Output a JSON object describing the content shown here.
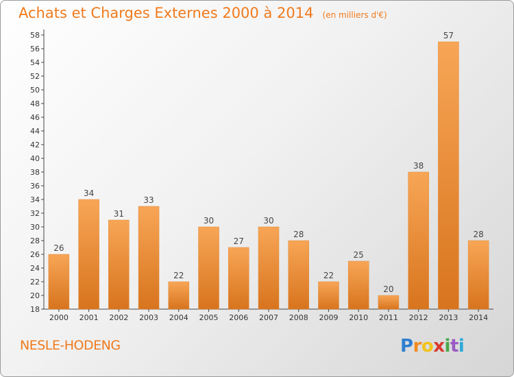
{
  "header": {
    "title": "Achats et Charges Externes 2000 à 2014",
    "unit": "(en milliers d'€)"
  },
  "footer": {
    "commune": "NESLE-HODENG",
    "logo": {
      "letters": [
        "P",
        "r",
        "o",
        "x",
        "i",
        "t",
        "i"
      ],
      "colors": [
        "#2f7fd0",
        "#f28a1c",
        "#f2c21c",
        "#d93a2c",
        "#4aa84a",
        "#9a5bc4",
        "#2fa8d8"
      ]
    }
  },
  "colors": {
    "bar_light": "#f7a656",
    "bar_dark": "#d8741e",
    "title": "#f07a1c"
  },
  "chart_data": {
    "type": "bar",
    "title": "Achats et Charges Externes 2000 à 2014",
    "subtitle": "(en milliers d'€)",
    "categories": [
      "2000",
      "2001",
      "2002",
      "2003",
      "2004",
      "2005",
      "2006",
      "2007",
      "2008",
      "2009",
      "2010",
      "2011",
      "2012",
      "2013",
      "2014"
    ],
    "values": [
      26,
      34,
      31,
      33,
      22,
      30,
      27,
      30,
      28,
      22,
      25,
      20,
      38,
      57,
      28
    ],
    "ylim": [
      18,
      58
    ],
    "yticks": [
      18,
      20,
      22,
      24,
      26,
      28,
      30,
      32,
      34,
      36,
      38,
      40,
      42,
      44,
      46,
      48,
      50,
      52,
      54,
      56,
      58
    ],
    "grid": false,
    "legend": "none"
  }
}
